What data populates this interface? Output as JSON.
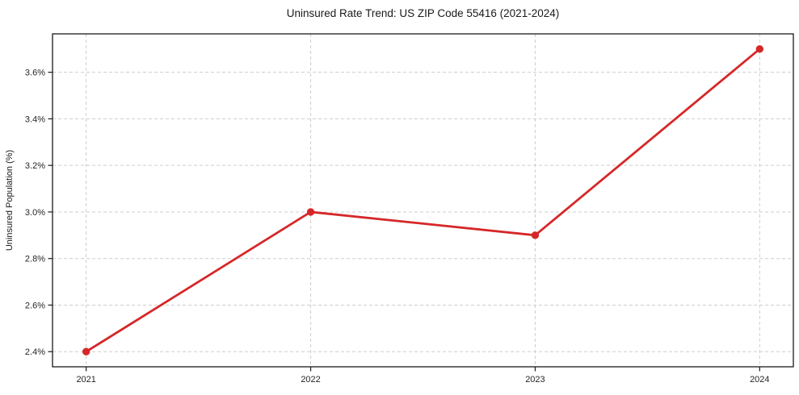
{
  "chart_data": {
    "type": "line",
    "title": "Uninsured Rate Trend: US ZIP Code 55416 (2021-2024)",
    "xlabel": "",
    "ylabel": "Uninsured Population (%)",
    "x": [
      2021,
      2022,
      2023,
      2024
    ],
    "x_tick_labels": [
      "2021",
      "2022",
      "2023",
      "2024"
    ],
    "values": [
      2.4,
      3.0,
      2.9,
      3.7
    ],
    "y_ticks": [
      2.4,
      2.6,
      2.8,
      3.0,
      3.2,
      3.4,
      3.6
    ],
    "y_tick_labels": [
      "2.4%",
      "2.6%",
      "2.8%",
      "3.0%",
      "3.2%",
      "3.4%",
      "3.6%"
    ],
    "xlim": [
      2020.85,
      2024.15
    ],
    "ylim": [
      2.335,
      3.765
    ],
    "grid": true,
    "legend": false,
    "colors": {
      "line": "#d62728",
      "marker": "#d62728",
      "grid": "#cdcdcd",
      "axis": "#1a1a1a",
      "background": "#ffffff"
    }
  }
}
